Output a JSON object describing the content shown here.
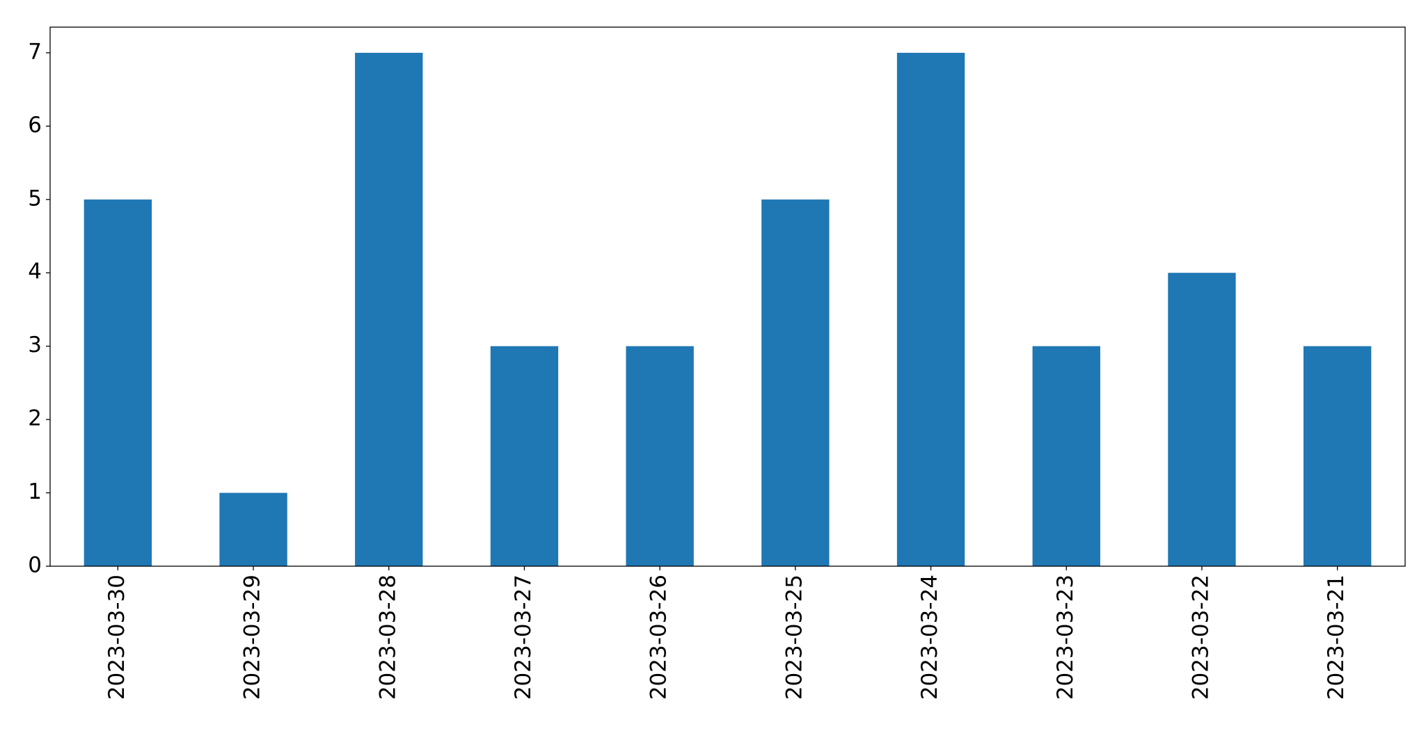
{
  "chart_data": {
    "type": "bar",
    "categories": [
      "2023-03-30",
      "2023-03-29",
      "2023-03-28",
      "2023-03-27",
      "2023-03-26",
      "2023-03-25",
      "2023-03-24",
      "2023-03-23",
      "2023-03-22",
      "2023-03-21"
    ],
    "values": [
      5,
      1,
      7,
      3,
      3,
      5,
      7,
      3,
      4,
      3
    ],
    "color": "#1f77b4",
    "ylim": [
      0,
      7.35
    ],
    "yticks": [
      0,
      1,
      2,
      3,
      4,
      5,
      6,
      7
    ],
    "grid": false
  }
}
